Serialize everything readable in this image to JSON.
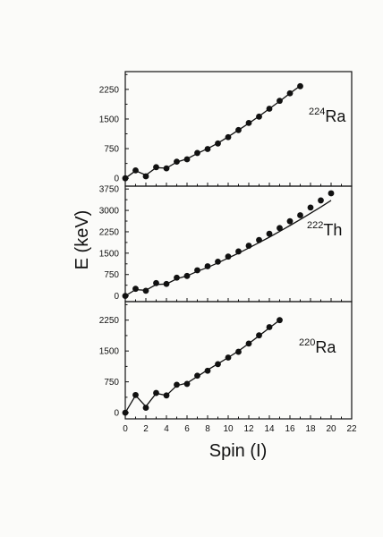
{
  "figure": {
    "ylabel": "E (keV)",
    "xlabel": "Spin (I)"
  },
  "chart_data": [
    {
      "type": "scatter",
      "panel": "top",
      "label_mass": "224",
      "label_element": "Ra",
      "x_ticks": [],
      "y_ticks": [
        0,
        750,
        1500,
        2250
      ],
      "xlim": [
        0,
        22
      ],
      "ylim": [
        -200,
        2700
      ],
      "series": [
        {
          "kind": "points",
          "x": [
            0,
            1,
            2,
            3,
            4,
            5,
            6,
            7,
            8,
            9,
            10,
            11,
            12,
            13,
            14,
            15,
            16,
            17
          ],
          "y": [
            0,
            200,
            50,
            280,
            250,
            420,
            480,
            640,
            740,
            880,
            1040,
            1220,
            1400,
            1560,
            1760,
            1960,
            2150,
            2330
          ]
        },
        {
          "kind": "line",
          "x": [
            0,
            1,
            2,
            3,
            4,
            5,
            6,
            7,
            8,
            9,
            10,
            11,
            12,
            13,
            14,
            15,
            16,
            17
          ],
          "y": [
            0,
            190,
            80,
            270,
            255,
            410,
            490,
            630,
            750,
            890,
            1050,
            1220,
            1390,
            1570,
            1760,
            1950,
            2150,
            2340
          ]
        }
      ]
    },
    {
      "type": "scatter",
      "panel": "middle",
      "label_mass": "222",
      "label_element": "Th",
      "x_ticks": [],
      "y_ticks": [
        0,
        750,
        1500,
        2250,
        3000,
        3750
      ],
      "xlim": [
        0,
        22
      ],
      "ylim": [
        -200,
        3850
      ],
      "series": [
        {
          "kind": "points",
          "x": [
            0,
            1,
            2,
            3,
            4,
            5,
            6,
            7,
            8,
            9,
            10,
            11,
            12,
            13,
            14,
            15,
            16,
            17,
            18,
            19,
            20
          ],
          "y": [
            0,
            250,
            180,
            450,
            420,
            640,
            700,
            900,
            1040,
            1200,
            1380,
            1560,
            1760,
            1960,
            2180,
            2380,
            2620,
            2830,
            3100,
            3350,
            3600
          ]
        },
        {
          "kind": "line",
          "x": [
            0,
            1,
            2,
            3,
            4,
            5,
            6,
            7,
            8,
            9,
            10,
            11,
            12,
            13,
            14,
            15,
            16,
            17,
            18,
            19,
            20
          ],
          "y": [
            0,
            220,
            200,
            400,
            420,
            600,
            700,
            860,
            1000,
            1160,
            1330,
            1500,
            1680,
            1870,
            2060,
            2260,
            2470,
            2680,
            2900,
            3120,
            3350
          ]
        }
      ]
    },
    {
      "type": "scatter",
      "panel": "bottom",
      "label_mass": "220",
      "label_element": "Ra",
      "x_ticks": [
        0,
        2,
        4,
        6,
        8,
        10,
        12,
        14,
        16,
        18,
        20,
        22
      ],
      "y_ticks": [
        0,
        750,
        1500,
        2250
      ],
      "xlim": [
        0,
        22
      ],
      "ylim": [
        -150,
        2700
      ],
      "series": [
        {
          "kind": "points",
          "x": [
            0,
            1,
            2,
            3,
            4,
            5,
            6,
            7,
            8,
            9,
            10,
            11,
            12,
            13,
            14,
            15
          ],
          "y": [
            0,
            430,
            120,
            480,
            420,
            680,
            700,
            900,
            1020,
            1180,
            1340,
            1480,
            1680,
            1880,
            2080,
            2250
          ]
        },
        {
          "kind": "line",
          "x": [
            0,
            1,
            2,
            3,
            4,
            5,
            6,
            7,
            8,
            9,
            10,
            11,
            12,
            13,
            14,
            15
          ],
          "y": [
            0,
            420,
            150,
            470,
            420,
            660,
            720,
            880,
            1040,
            1190,
            1340,
            1500,
            1680,
            1870,
            2060,
            2250
          ]
        }
      ]
    }
  ]
}
